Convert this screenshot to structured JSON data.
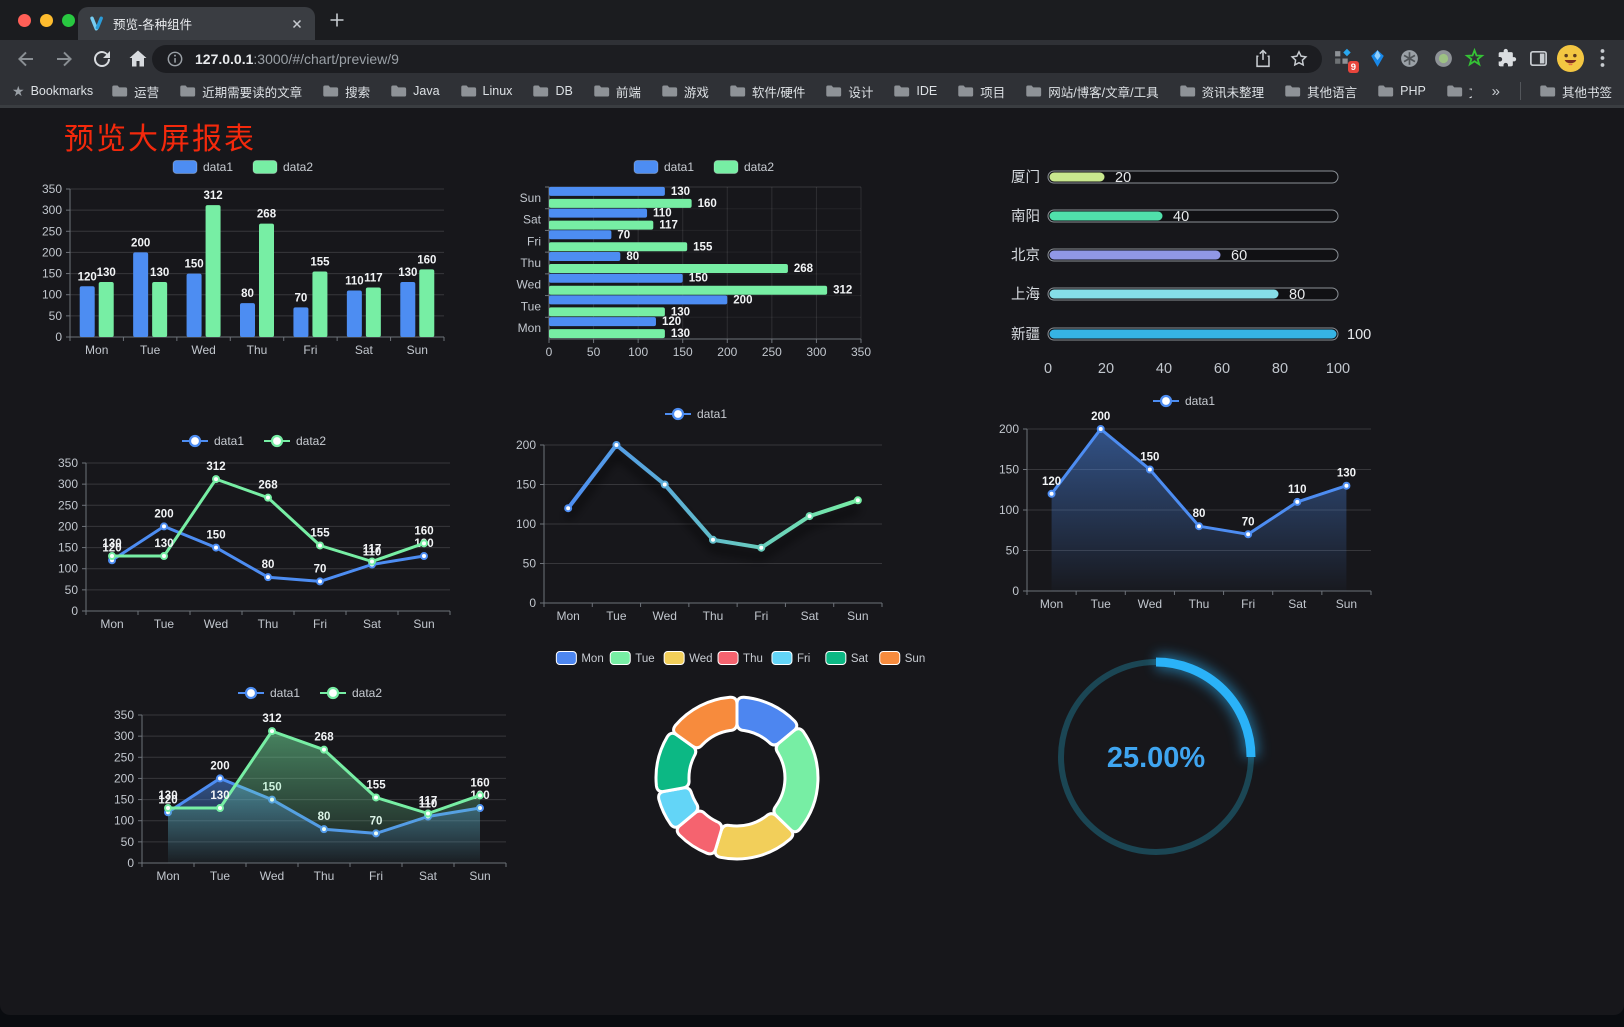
{
  "browser": {
    "tab_title": "预览-各种组件",
    "url_host": "127.0.0.1",
    "url_rest": ":3000/#/chart/preview/9",
    "bookmarks_label": "Bookmarks",
    "bookmarks": [
      "运营",
      "近期需要读的文章",
      "搜索",
      "Java",
      "Linux",
      "DB",
      "前端",
      "游戏",
      "软件/硬件",
      "设计",
      "IDE",
      "项目",
      "网站/博客/文章/工具",
      "资讯未整理",
      "其他语言",
      "PHP",
      "文件服务器"
    ],
    "bookmarks_overflow": "»",
    "other_bookmarks": "其他书签",
    "extension_badge": "9"
  },
  "page": {
    "title": "预览大屏报表",
    "title_color": "#F4290C"
  },
  "chart_data": [
    {
      "id": "bar-vertical",
      "type": "bar",
      "categories": [
        "Mon",
        "Tue",
        "Wed",
        "Thu",
        "Fri",
        "Sat",
        "Sun"
      ],
      "series": [
        {
          "name": "data1",
          "color": "#4D8DF2",
          "values": [
            120,
            200,
            150,
            80,
            70,
            110,
            130
          ]
        },
        {
          "name": "data2",
          "color": "#77EEA4",
          "values": [
            130,
            130,
            312,
            268,
            155,
            117,
            160
          ]
        }
      ],
      "ylim": [
        0,
        350
      ],
      "yticks": [
        0,
        50,
        100,
        150,
        200,
        250,
        300,
        350
      ],
      "value_labels": true,
      "legend_position": "top",
      "grid": true
    },
    {
      "id": "bar-horizontal",
      "type": "bar-horizontal",
      "categories": [
        "Mon",
        "Tue",
        "Wed",
        "Thu",
        "Fri",
        "Sat",
        "Sun"
      ],
      "categories_display_top_to_bottom": [
        "Sun",
        "Sat",
        "Fri",
        "Thu",
        "Wed",
        "Tue",
        "Mon"
      ],
      "series": [
        {
          "name": "data1",
          "color": "#4D8DF2",
          "values": [
            120,
            200,
            150,
            80,
            70,
            110,
            130
          ]
        },
        {
          "name": "data2",
          "color": "#77EEA4",
          "values": [
            130,
            130,
            312,
            268,
            155,
            117,
            160
          ]
        }
      ],
      "xlim": [
        0,
        350
      ],
      "xticks": [
        0,
        50,
        100,
        150,
        200,
        250,
        300,
        350
      ],
      "value_labels": true,
      "legend_position": "top",
      "grid": true
    },
    {
      "id": "progress-bars",
      "type": "progress",
      "items": [
        {
          "label": "厦门",
          "value": 20,
          "color": "#C9E88E"
        },
        {
          "label": "南阳",
          "value": 40,
          "color": "#50E0AB"
        },
        {
          "label": "北京",
          "value": 60,
          "color": "#9097E6"
        },
        {
          "label": "上海",
          "value": 80,
          "color": "#85DEE8"
        },
        {
          "label": "新疆",
          "value": 100,
          "color": "#36B3E4"
        }
      ],
      "max": 100,
      "ticks": [
        0,
        20,
        40,
        60,
        80,
        100
      ]
    },
    {
      "id": "line-two",
      "type": "line",
      "categories": [
        "Mon",
        "Tue",
        "Wed",
        "Thu",
        "Fri",
        "Sat",
        "Sun"
      ],
      "series": [
        {
          "name": "data1",
          "color": "#4D8DF2",
          "values": [
            120,
            200,
            150,
            80,
            70,
            110,
            130
          ]
        },
        {
          "name": "data2",
          "color": "#77EEA4",
          "values": [
            130,
            130,
            312,
            268,
            155,
            117,
            160
          ]
        }
      ],
      "ylim": [
        0,
        350
      ],
      "yticks": [
        0,
        50,
        100,
        150,
        200,
        250,
        300,
        350
      ],
      "value_labels": true,
      "legend_position": "top"
    },
    {
      "id": "line-gradient",
      "type": "line",
      "categories": [
        "Mon",
        "Tue",
        "Wed",
        "Thu",
        "Fri",
        "Sat",
        "Sun"
      ],
      "series": [
        {
          "name": "data1",
          "gradient": [
            "#4D8DF2",
            "#77EEA4"
          ],
          "values": [
            120,
            200,
            150,
            80,
            70,
            110,
            130
          ]
        }
      ],
      "ylim": [
        0,
        200
      ],
      "yticks": [
        0,
        50,
        100,
        150,
        200
      ],
      "value_labels": false,
      "shadow": true,
      "legend_position": "top"
    },
    {
      "id": "line-area-blue",
      "type": "line",
      "categories": [
        "Mon",
        "Tue",
        "Wed",
        "Thu",
        "Fri",
        "Sat",
        "Sun"
      ],
      "series": [
        {
          "name": "data1",
          "color": "#4D8DF2",
          "area": true,
          "values": [
            120,
            200,
            150,
            80,
            70,
            110,
            130
          ]
        }
      ],
      "ylim": [
        0,
        200
      ],
      "yticks": [
        0,
        50,
        100,
        150,
        200
      ],
      "value_labels": true,
      "legend_position": "top"
    },
    {
      "id": "line-area-two",
      "type": "line",
      "categories": [
        "Mon",
        "Tue",
        "Wed",
        "Thu",
        "Fri",
        "Sat",
        "Sun"
      ],
      "series": [
        {
          "name": "data1",
          "color": "#4D8DF2",
          "area": true,
          "values": [
            120,
            200,
            150,
            80,
            70,
            110,
            130
          ]
        },
        {
          "name": "data2",
          "color": "#77EEA4",
          "area": true,
          "values": [
            130,
            130,
            312,
            268,
            155,
            117,
            160
          ]
        }
      ],
      "ylim": [
        0,
        350
      ],
      "yticks": [
        0,
        50,
        100,
        150,
        200,
        250,
        300,
        350
      ],
      "value_labels": true,
      "legend_position": "top"
    },
    {
      "id": "donut",
      "type": "pie",
      "categories": [
        "Mon",
        "Tue",
        "Wed",
        "Thu",
        "Fri",
        "Sat",
        "Sun"
      ],
      "values": [
        120,
        200,
        150,
        80,
        70,
        110,
        130
      ],
      "colors": [
        "#4D86F0",
        "#77EEA4",
        "#F2CF5A",
        "#F5636F",
        "#63D5F7",
        "#0CB884",
        "#F78B3D"
      ],
      "inner_radius_ratio": 0.59,
      "legend_position": "top"
    },
    {
      "id": "gauge",
      "type": "gauge",
      "value": 25,
      "display": "25.00%",
      "color": "#2AB2F8",
      "track_color": "#1B4654",
      "text_color": "#3FA5F0"
    }
  ]
}
